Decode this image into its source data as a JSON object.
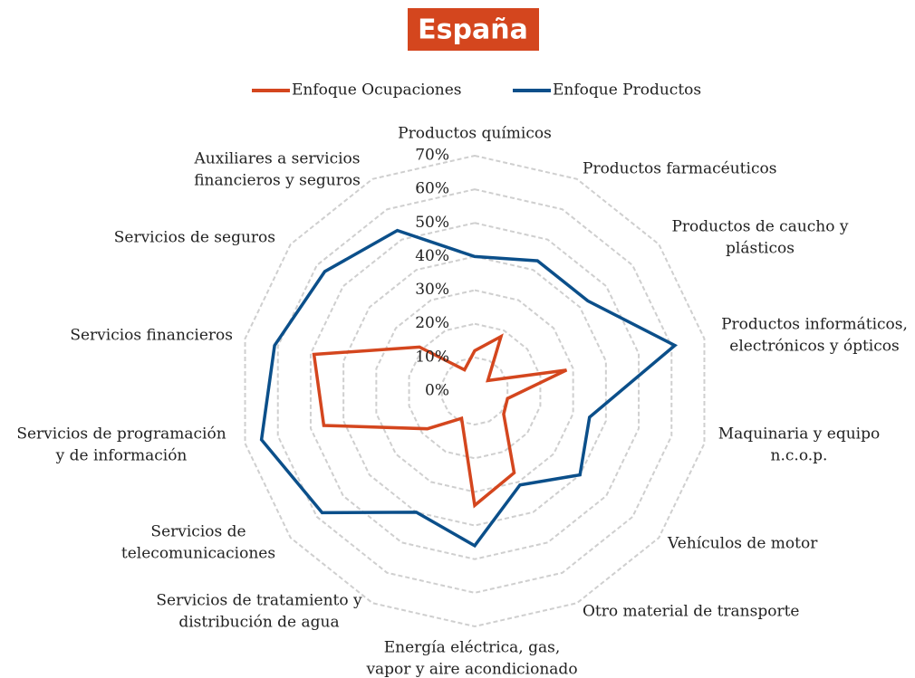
{
  "chart_data": {
    "type": "radar",
    "title": "España",
    "categories": [
      [
        "Productos químicos"
      ],
      [
        "Productos farmacéuticos"
      ],
      [
        "Productos de caucho y",
        "plásticos"
      ],
      [
        "Productos informáticos,",
        "electrónicos y ópticos"
      ],
      [
        "Maquinaria y equipo",
        "n.c.o.p."
      ],
      [
        "Vehículos de motor"
      ],
      [
        "Otro material de transporte"
      ],
      [
        "Energía eléctrica, gas,",
        "vapor y aire acondicionado"
      ],
      [
        "Servicios de tratamiento y",
        "distribución de agua"
      ],
      [
        "Servicios de",
        "telecomunicaciones"
      ],
      [
        "Servicios de programación",
        "y de información"
      ],
      [
        "Servicios financieros"
      ],
      [
        "Servicios de seguros"
      ],
      [
        "Auxiliares a servicios",
        "financieros y seguros"
      ]
    ],
    "series": [
      {
        "name": "Enfoque Ocupaciones",
        "color": "#d4461e",
        "values": [
          12,
          18,
          5,
          28,
          10,
          11,
          27,
          34,
          9,
          18,
          46,
          49,
          21,
          7
        ]
      },
      {
        "name": "Enfoque Productos",
        "color": "#0b4f8a",
        "values": [
          40,
          43,
          43,
          61,
          35,
          40,
          31,
          46,
          40,
          58,
          65,
          61,
          57,
          53
        ]
      }
    ],
    "ylim": [
      0,
      70
    ],
    "yticks": [
      {
        "value": 0,
        "label": "0%"
      },
      {
        "value": 10,
        "label": "10%"
      },
      {
        "value": 20,
        "label": "20%"
      },
      {
        "value": 30,
        "label": "30%"
      },
      {
        "value": 40,
        "label": "40%"
      },
      {
        "value": 50,
        "label": "50%"
      },
      {
        "value": 60,
        "label": "60%"
      },
      {
        "value": 70,
        "label": "70%"
      }
    ],
    "grid": true,
    "legend": "top"
  }
}
